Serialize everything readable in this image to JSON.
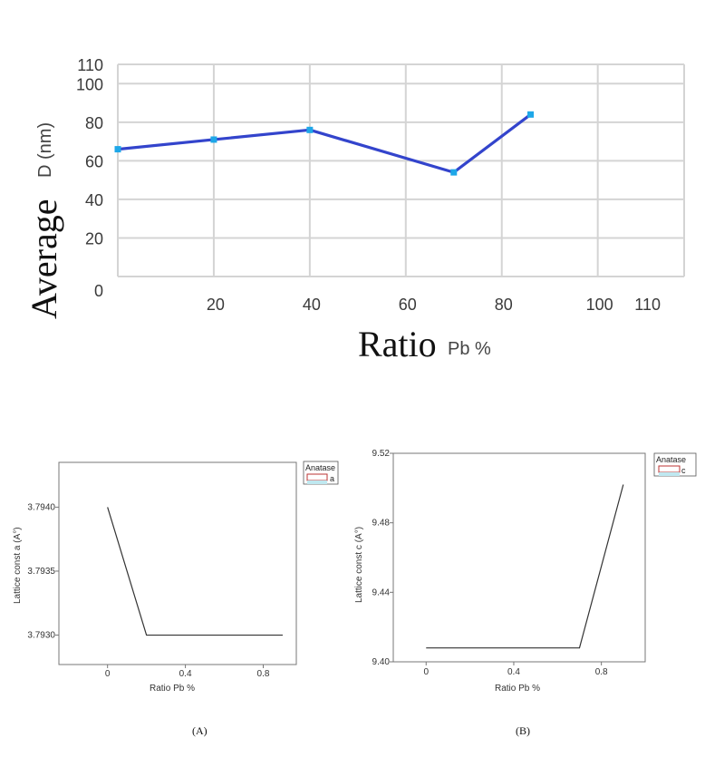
{
  "chart_data": [
    {
      "type": "line",
      "xlabel_main": "Ratio",
      "xlabel_unit": "Pb %",
      "ylabel_main": "Average",
      "ylabel_unit": "D (nm)",
      "x_ticks": [
        "20",
        "40",
        "60",
        "80",
        "100",
        "110"
      ],
      "y_ticks": [
        "0",
        "20",
        "40",
        "60",
        "80",
        "100",
        "110"
      ],
      "xlim": [
        0,
        118
      ],
      "ylim": [
        0,
        110
      ],
      "grid": true,
      "line_color": "#3344cc",
      "marker_color": "#1ea7e8",
      "series": [
        {
          "x": [
            0,
            20,
            40,
            70,
            86
          ],
          "y": [
            66,
            71,
            76,
            54,
            84
          ]
        }
      ]
    },
    {
      "type": "line",
      "ylabel": "Lattice const a (A°)",
      "xlabel": "Ratio Pb %",
      "x_ticks": [
        "0",
        "0.4",
        "0.8"
      ],
      "y_ticks": [
        "3.7930",
        "3.7935",
        "3.7940"
      ],
      "xlim": [
        -0.25,
        0.97
      ],
      "ylim": [
        3.79277,
        3.79435
      ],
      "legend_title": "Anatase",
      "legend_entry": "a",
      "line_color": "#333333",
      "caption": "(A)",
      "series": [
        {
          "name": "a",
          "x": [
            0,
            0.2,
            0.9
          ],
          "y": [
            3.794,
            3.793,
            3.793
          ]
        }
      ]
    },
    {
      "type": "line",
      "ylabel": "Lattice const c (A°)",
      "xlabel": "Ratio Pb %",
      "x_ticks": [
        "0",
        "0.4",
        "0.8"
      ],
      "y_ticks": [
        "9.40",
        "9.44",
        "9.48",
        "9.52"
      ],
      "xlim": [
        -0.15,
        1.0
      ],
      "ylim": [
        9.4,
        9.52
      ],
      "legend_title": "Anatase",
      "legend_entry": "c",
      "line_color": "#333333",
      "caption": "(B)",
      "series": [
        {
          "name": "c",
          "x": [
            0,
            0.7,
            0.9
          ],
          "y": [
            9.408,
            9.408,
            9.502
          ]
        }
      ]
    }
  ]
}
